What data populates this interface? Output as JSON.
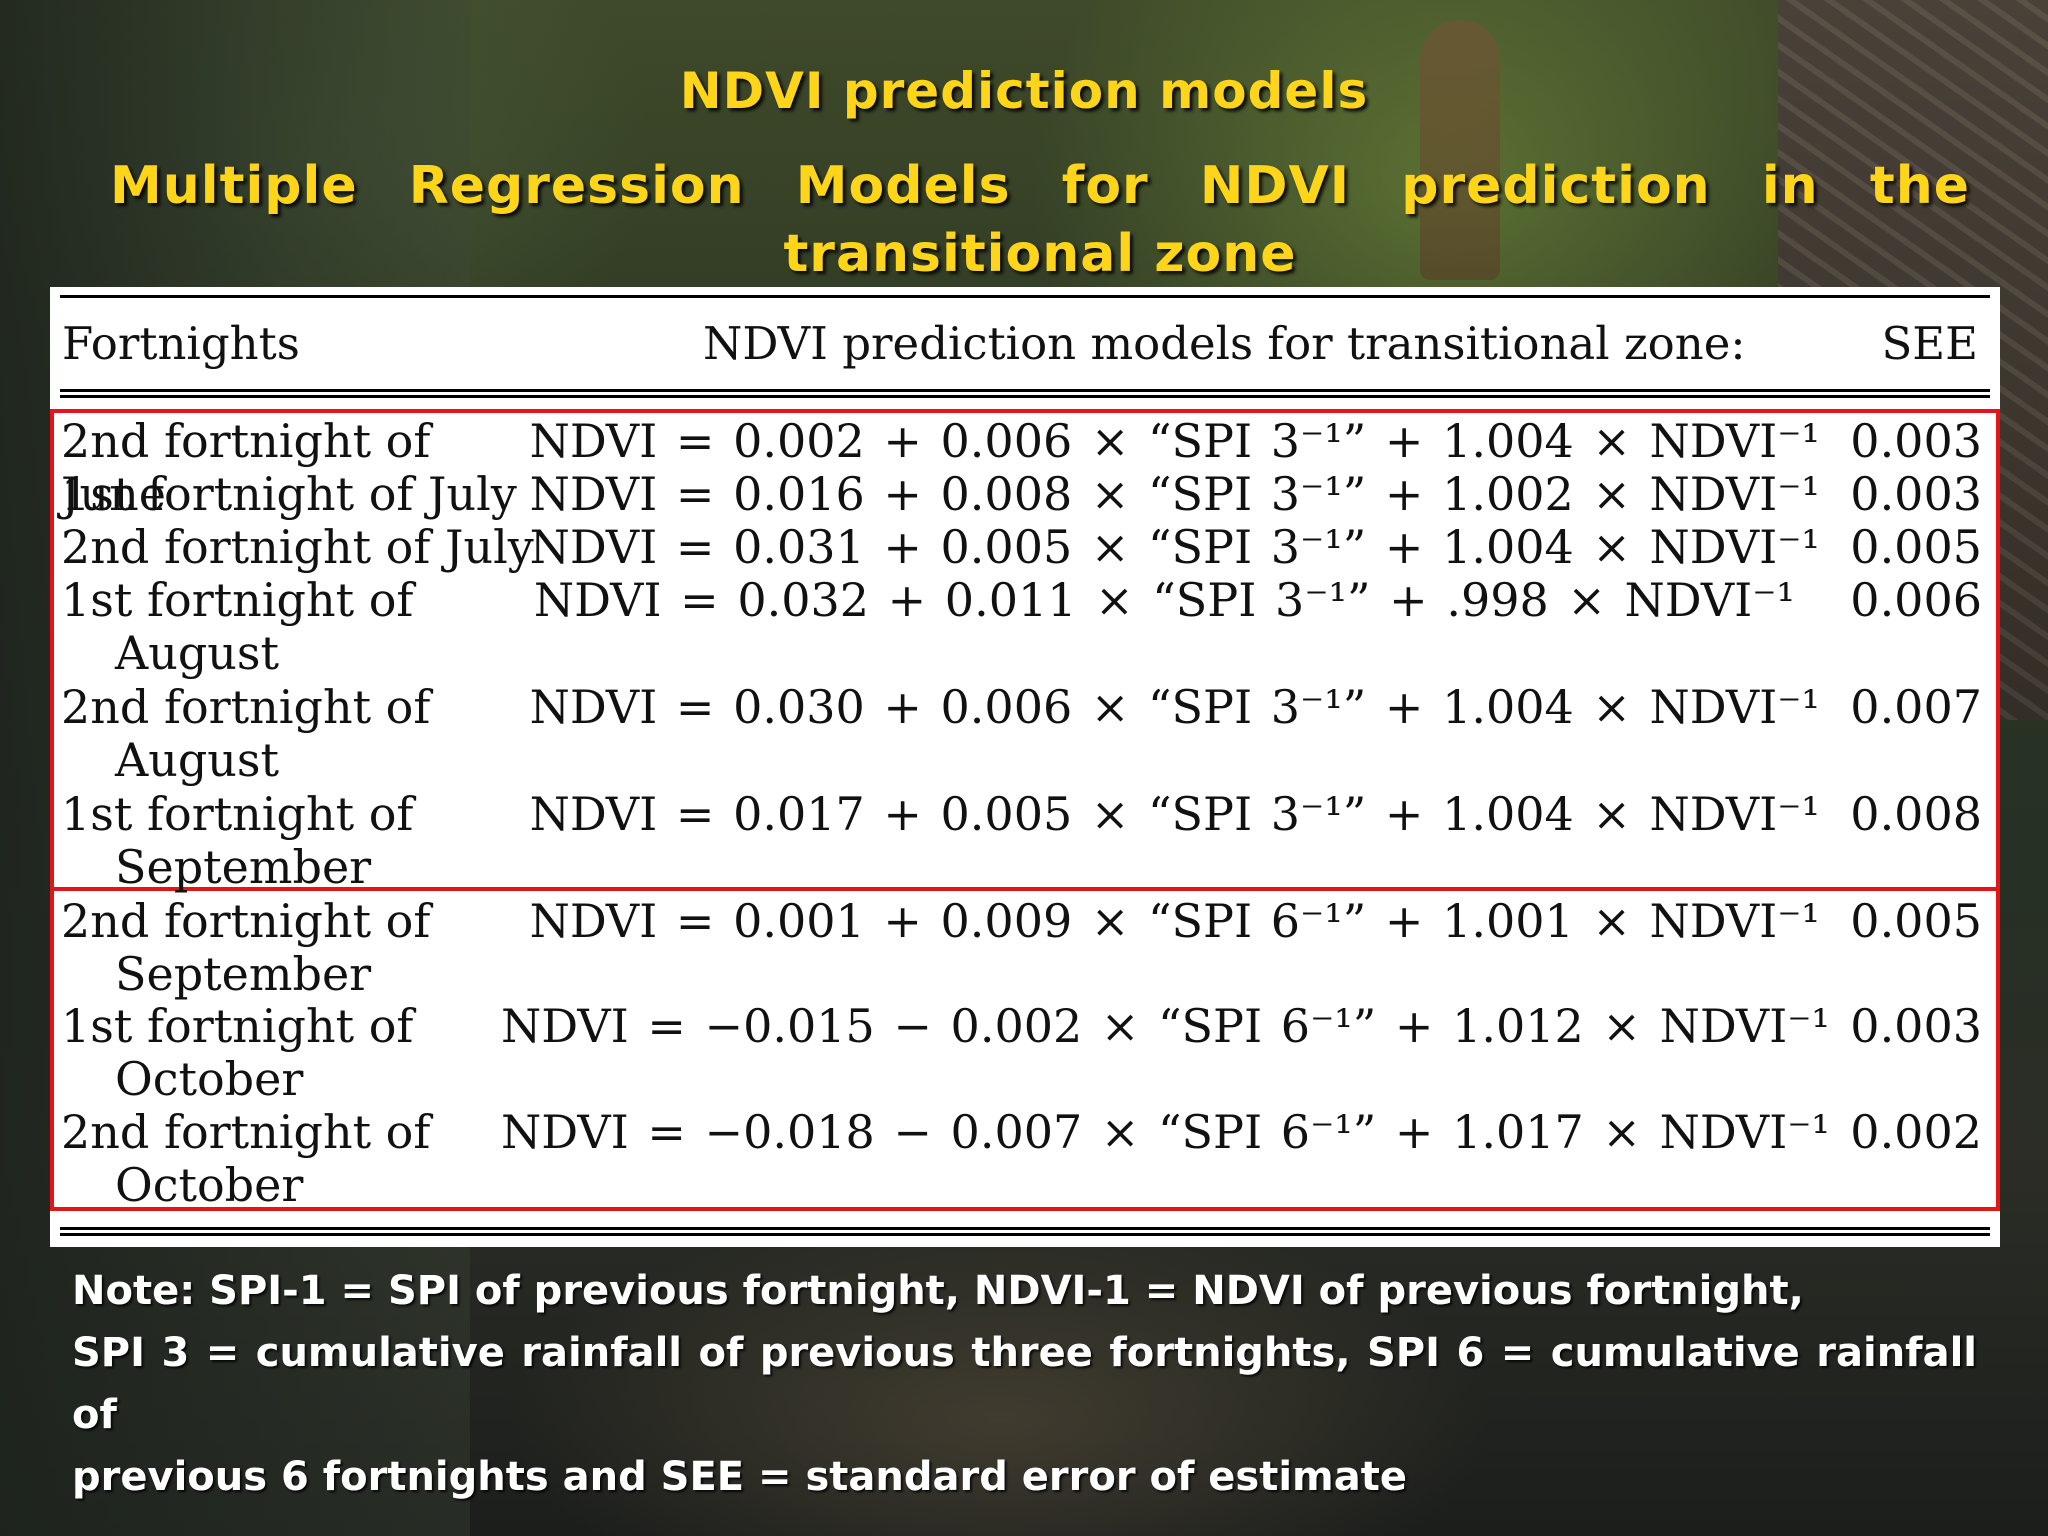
{
  "slide": {
    "title": "NDVI prediction models",
    "subtitle": "Multiple Regression Models for NDVI prediction in the transitional zone"
  },
  "table": {
    "headers": {
      "col1": "Fortnights",
      "col2": "NDVI prediction models for transitional zone:",
      "col3": "SEE"
    },
    "rows": [
      {
        "fortnight_l1": "2nd fortnight of June",
        "fortnight_l2": "",
        "model": "NDVI = 0.002 + 0.006 × “SPI 3⁻¹” + 1.004 × NDVI⁻¹",
        "see": "0.003"
      },
      {
        "fortnight_l1": "1st fortnight of July",
        "fortnight_l2": "",
        "model": "NDVI = 0.016 + 0.008 × “SPI 3⁻¹” + 1.002 × NDVI⁻¹",
        "see": "0.003"
      },
      {
        "fortnight_l1": "2nd fortnight of July",
        "fortnight_l2": "",
        "model": "NDVI = 0.031 + 0.005 × “SPI 3⁻¹” + 1.004 × NDVI⁻¹",
        "see": "0.005"
      },
      {
        "fortnight_l1": "1st fortnight of",
        "fortnight_l2": "August",
        "model": "NDVI = 0.032 + 0.011 × “SPI 3⁻¹” + .998 × NDVI⁻¹",
        "see": "0.006"
      },
      {
        "fortnight_l1": "2nd fortnight of",
        "fortnight_l2": "August",
        "model": "NDVI = 0.030 + 0.006 × “SPI 3⁻¹” + 1.004 × NDVI⁻¹",
        "see": "0.007"
      },
      {
        "fortnight_l1": "1st fortnight of",
        "fortnight_l2": "September",
        "model": "NDVI = 0.017 + 0.005 × “SPI 3⁻¹” + 1.004 × NDVI⁻¹",
        "see": "0.008"
      },
      {
        "fortnight_l1": "2nd fortnight of",
        "fortnight_l2": "September",
        "model": "NDVI = 0.001 + 0.009 × “SPI 6⁻¹” + 1.001 × NDVI⁻¹",
        "see": "0.005"
      },
      {
        "fortnight_l1": "1st fortnight of",
        "fortnight_l2": "October",
        "model": "NDVI = −0.015 − 0.002 × “SPI 6⁻¹” + 1.012 × NDVI⁻¹",
        "see": "0.003"
      },
      {
        "fortnight_l1": "2nd fortnight of",
        "fortnight_l2": "October",
        "model": "NDVI = −0.018 − 0.007 × “SPI 6⁻¹” + 1.017 × NDVI⁻¹",
        "see": "0.002"
      }
    ]
  },
  "note": {
    "line1": "Note: SPI-1 = SPI of previous fortnight, NDVI-1 = NDVI of previous fortnight,",
    "line2": "SPI 3 = cumulative rainfall of previous three fortnights, SPI 6 = cumulative rainfall of",
    "line3": "previous 6 fortnights and SEE = standard error of estimate"
  },
  "colors": {
    "title": "#ffd51a",
    "highlight_box": "#e4141b",
    "note_text": "#ffffff"
  }
}
